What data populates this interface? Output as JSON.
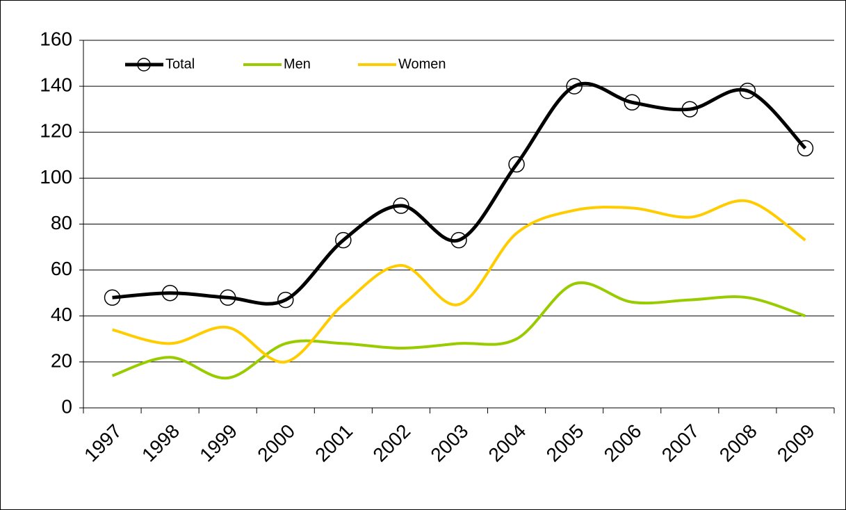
{
  "chart_data": {
    "type": "line",
    "categories": [
      "1997",
      "1998",
      "1999",
      "2000",
      "2001",
      "2002",
      "2003",
      "2004",
      "2005",
      "2006",
      "2007",
      "2008",
      "2009"
    ],
    "series": [
      {
        "name": "Total",
        "color": "#000000",
        "values": [
          48,
          50,
          48,
          47,
          73,
          88,
          73,
          106,
          140,
          133,
          130,
          138,
          113
        ]
      },
      {
        "name": "Men",
        "color": "#99cc00",
        "values": [
          14,
          22,
          13,
          28,
          28,
          26,
          28,
          30,
          54,
          46,
          47,
          48,
          40
        ]
      },
      {
        "name": "Women",
        "color": "#ffcc00",
        "values": [
          34,
          28,
          35,
          20,
          45,
          62,
          45,
          76,
          86,
          87,
          83,
          90,
          73
        ]
      }
    ],
    "ylim": [
      0,
      160
    ],
    "yticks": [
      0,
      20,
      40,
      60,
      80,
      100,
      120,
      140,
      160
    ],
    "grid": true,
    "smooth": true,
    "legend": "top-left"
  }
}
